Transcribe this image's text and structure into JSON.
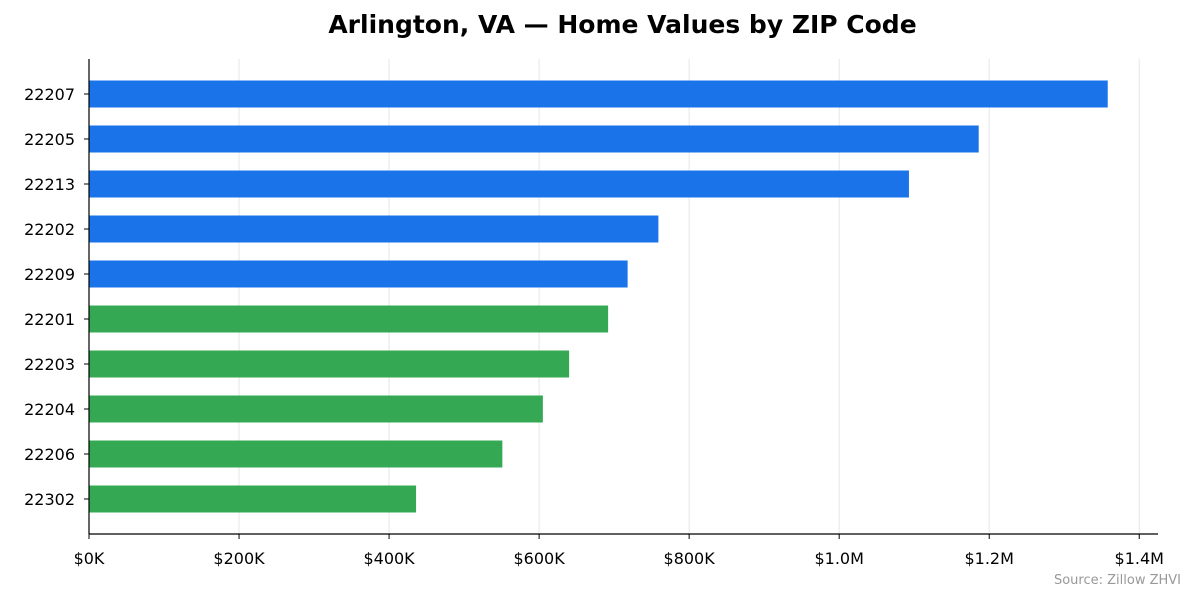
{
  "chart_data": {
    "type": "bar",
    "orientation": "horizontal",
    "title": "Arlington, VA — Home Values by ZIP Code",
    "source": "Source: Zillow ZHVI",
    "categories": [
      "22207",
      "22205",
      "22213",
      "22202",
      "22209",
      "22201",
      "22203",
      "22204",
      "22206",
      "22302"
    ],
    "values": [
      1358000,
      1186000,
      1093000,
      759000,
      718000,
      692000,
      640000,
      605000,
      551000,
      436000
    ],
    "bar_colors": [
      "#1a73e8",
      "#1a73e8",
      "#1a73e8",
      "#1a73e8",
      "#1a73e8",
      "#34a853",
      "#34a853",
      "#34a853",
      "#34a853",
      "#34a853"
    ],
    "xlim": [
      0,
      1425000
    ],
    "x_ticks": [
      0,
      200000,
      400000,
      600000,
      800000,
      1000000,
      1200000,
      1400000
    ],
    "x_tick_labels": [
      "$0K",
      "$200K",
      "$400K",
      "$600K",
      "$800K",
      "$1.0M",
      "$1.2M",
      "$1.4M"
    ],
    "xlabel": "",
    "ylabel": "",
    "grid": "vertical",
    "legend": "none"
  },
  "colors": {
    "grid": "#e6e6e6",
    "axis": "#000000",
    "source_text": "#999999"
  }
}
